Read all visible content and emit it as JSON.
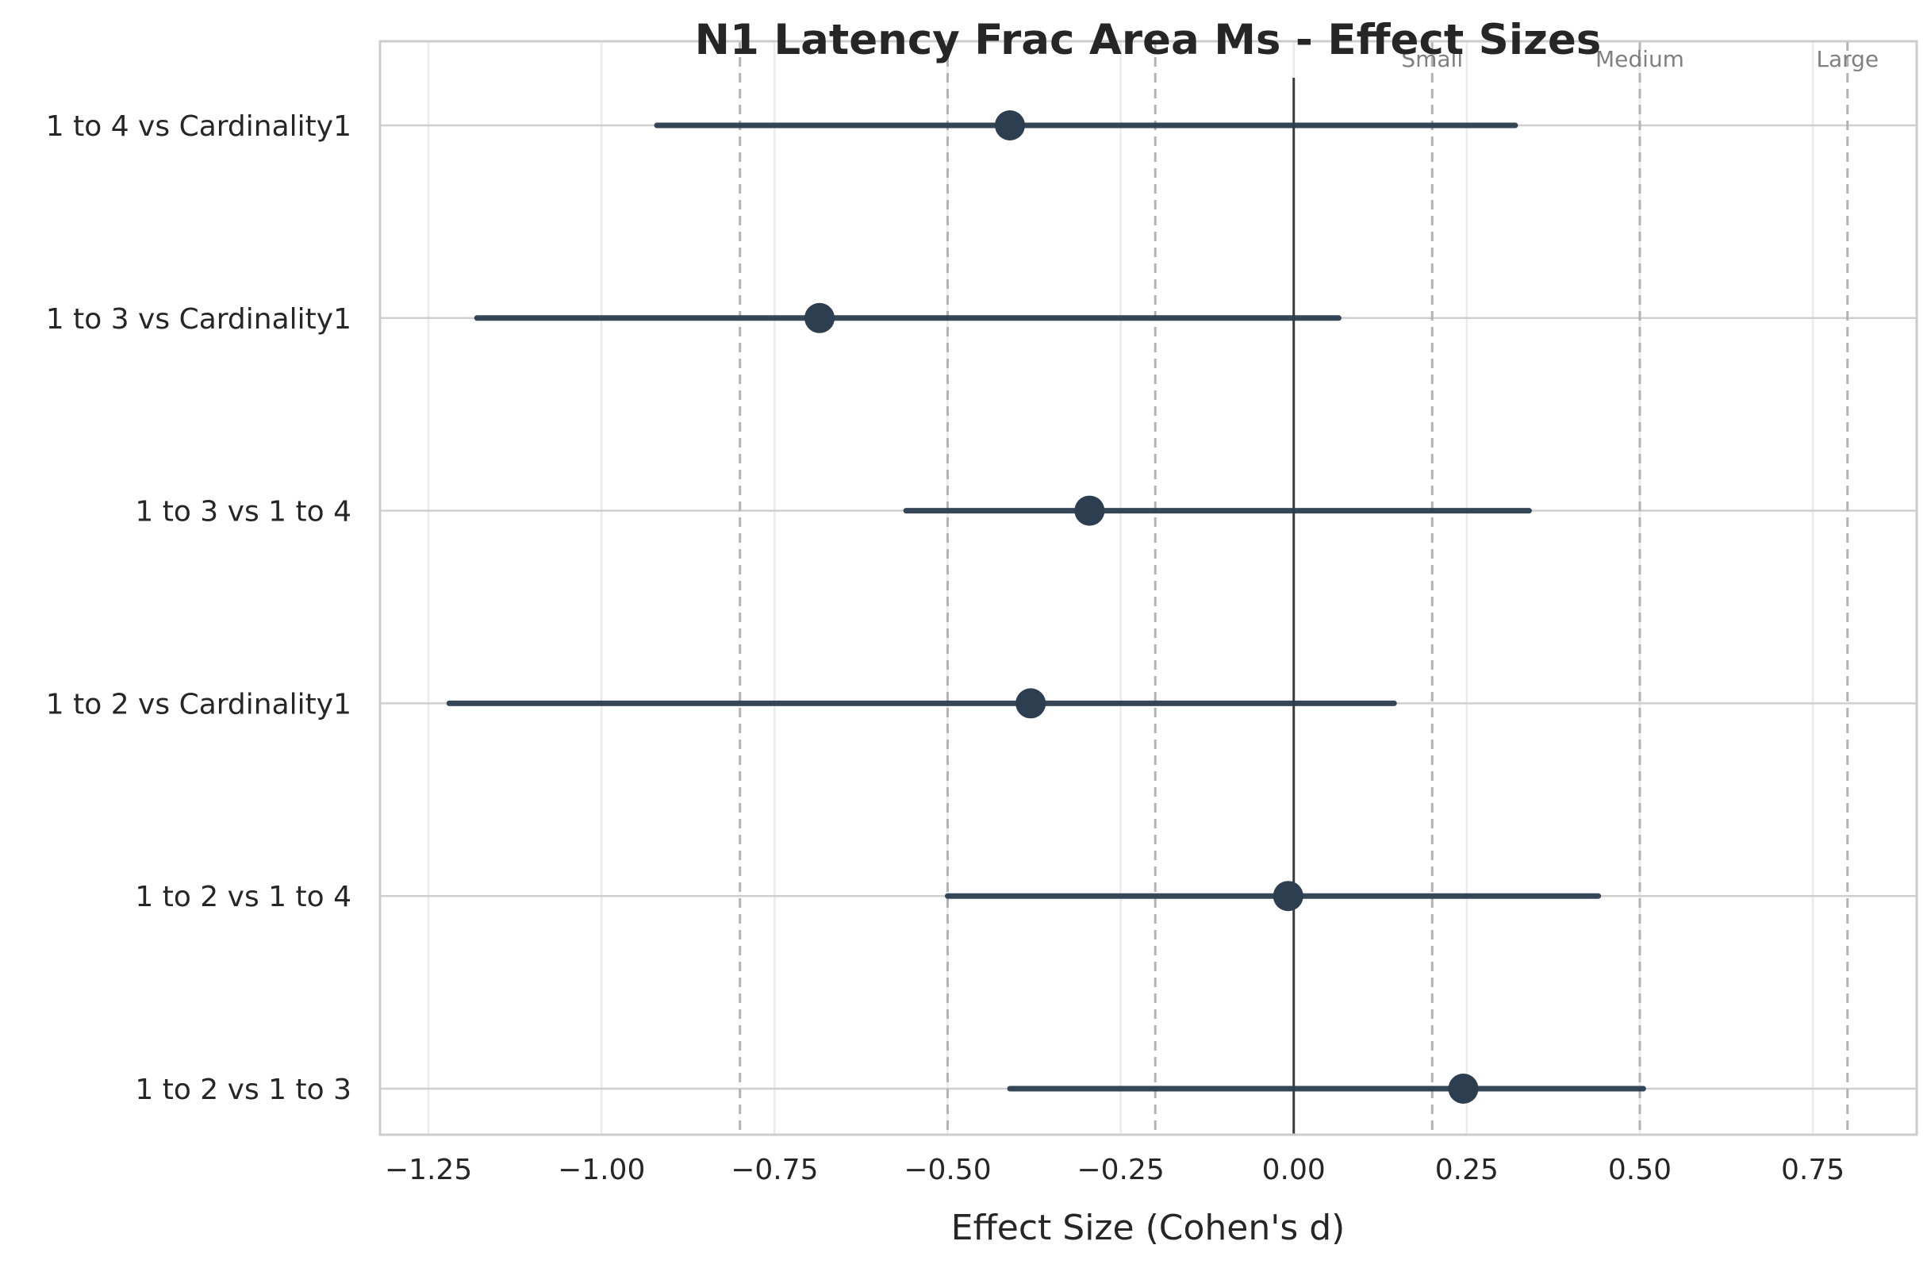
{
  "chart_data": {
    "type": "forest",
    "title": "N1 Latency Frac Area Ms - Effect Sizes",
    "xlabel": "Effect Size (Cohen's d)",
    "ylabel": "",
    "xlim": [
      -1.32,
      0.9
    ],
    "x_ticks": [
      -1.25,
      -1.0,
      -0.75,
      -0.5,
      -0.25,
      0.0,
      0.25,
      0.5,
      0.75
    ],
    "x_tick_labels": [
      "−1.25",
      "−1.00",
      "−0.75",
      "−0.50",
      "−0.25",
      "0.00",
      "0.25",
      "0.50",
      "0.75"
    ],
    "grid": true,
    "zero_line": 0.0,
    "reference_lines": [
      {
        "value": -0.8,
        "label": ""
      },
      {
        "value": -0.5,
        "label": ""
      },
      {
        "value": -0.2,
        "label": ""
      },
      {
        "value": 0.2,
        "label": "Small"
      },
      {
        "value": 0.5,
        "label": "Medium"
      },
      {
        "value": 0.8,
        "label": "Large"
      }
    ],
    "marker_color": "#2c3e50",
    "comparisons": [
      {
        "label": "1 to 4 vs Cardinality1",
        "d": -0.41,
        "ci_low": -0.92,
        "ci_high": 0.32
      },
      {
        "label": "1 to 3 vs Cardinality1",
        "d": -0.685,
        "ci_low": -1.18,
        "ci_high": 0.065
      },
      {
        "label": "1 to 3 vs 1 to 4",
        "d": -0.295,
        "ci_low": -0.56,
        "ci_high": 0.34
      },
      {
        "label": "1 to 2 vs Cardinality1",
        "d": -0.38,
        "ci_low": -1.22,
        "ci_high": 0.145
      },
      {
        "label": "1 to 2 vs 1 to 4",
        "d": -0.008,
        "ci_low": -0.5,
        "ci_high": 0.44
      },
      {
        "label": "1 to 2 vs 1 to 3",
        "d": 0.245,
        "ci_low": -0.41,
        "ci_high": 0.505
      }
    ]
  }
}
